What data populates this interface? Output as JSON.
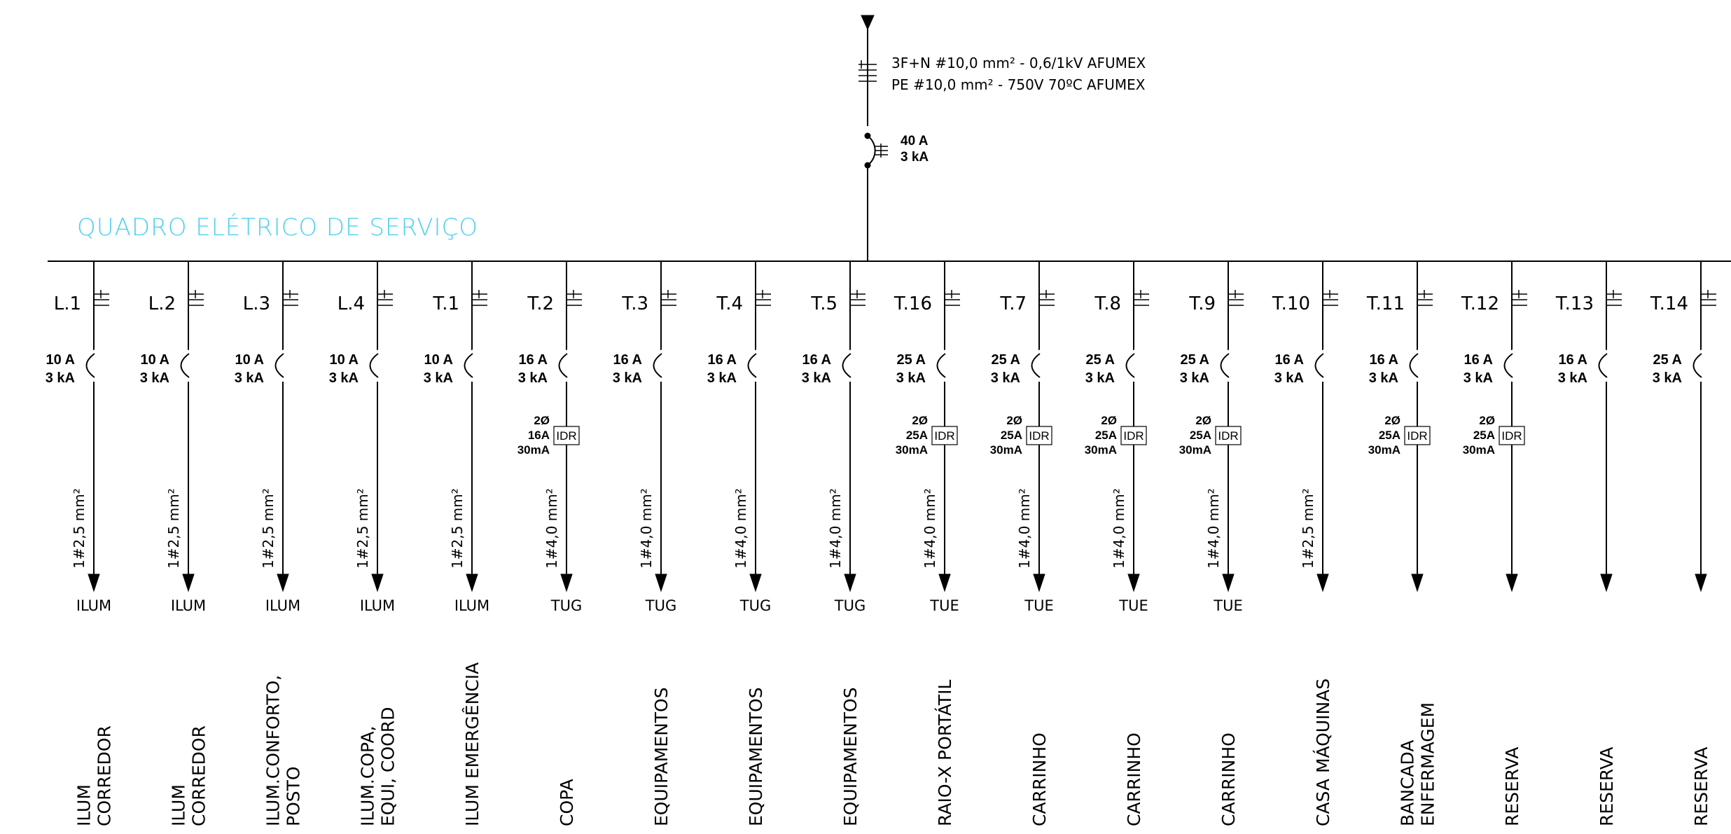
{
  "title": "QUADRO ELÉTRICO DE SERVIÇO",
  "colors": {
    "title": "#4fd0ec",
    "lines": "#000000",
    "background": "#ffffff"
  },
  "feeder": {
    "cable_line1": "3F+N #10,0 mm² - 0,6/1kV AFUMEX",
    "cable_line2": "PE #10,0 mm² - 750V 70ºC AFUMEX",
    "breaker_current": "40 A",
    "breaker_capacity": "3 kA"
  },
  "circuits": [
    {
      "id": "L.1",
      "current": "10 A",
      "capacity": "3 kA",
      "idr": null,
      "cable": "1#2,5 mm²",
      "type": "ILUM",
      "description": [
        "ILUM",
        "CORREDOR"
      ]
    },
    {
      "id": "L.2",
      "current": "10 A",
      "capacity": "3 kA",
      "idr": null,
      "cable": "1#2,5 mm²",
      "type": "ILUM",
      "description": [
        "ILUM",
        "CORREDOR"
      ]
    },
    {
      "id": "L.3",
      "current": "10 A",
      "capacity": "3 kA",
      "idr": null,
      "cable": "1#2,5 mm²",
      "type": "ILUM",
      "description": [
        "ILUM.CONFORTO,",
        "POSTO"
      ]
    },
    {
      "id": "L.4",
      "current": "10 A",
      "capacity": "3 kA",
      "idr": null,
      "cable": "1#2,5 mm²",
      "type": "ILUM",
      "description": [
        "ILUM.COPA,",
        "EQUI, COORD"
      ]
    },
    {
      "id": "T.1",
      "current": "10 A",
      "capacity": "3 kA",
      "idr": null,
      "cable": "1#2,5 mm²",
      "type": "ILUM",
      "description": [
        "ILUM EMERGÊNCIA"
      ]
    },
    {
      "id": "T.2",
      "current": "16 A",
      "capacity": "3 kA",
      "idr": {
        "poles": "2Ø",
        "current": "16A",
        "sensitivity": "30mA",
        "label": "IDR"
      },
      "cable": "1#4,0 mm²",
      "type": "TUG",
      "description": [
        "COPA"
      ]
    },
    {
      "id": "T.3",
      "current": "16 A",
      "capacity": "3 kA",
      "idr": null,
      "cable": "1#4,0 mm²",
      "type": "TUG",
      "description": [
        "EQUIPAMENTOS"
      ]
    },
    {
      "id": "T.4",
      "current": "16 A",
      "capacity": "3 kA",
      "idr": null,
      "cable": "1#4,0 mm²",
      "type": "TUG",
      "description": [
        "EQUIPAMENTOS"
      ]
    },
    {
      "id": "T.5",
      "current": "16 A",
      "capacity": "3 kA",
      "idr": null,
      "cable": "1#4,0 mm²",
      "type": "TUG",
      "description": [
        "EQUIPAMENTOS"
      ]
    },
    {
      "id": "T.16",
      "current": "25 A",
      "capacity": "3 kA",
      "idr": {
        "poles": "2Ø",
        "current": "25A",
        "sensitivity": "30mA",
        "label": "IDR"
      },
      "cable": "1#4,0 mm²",
      "type": "TUE",
      "description": [
        "RAIO-X PORTÁTIL"
      ]
    },
    {
      "id": "T.7",
      "current": "25 A",
      "capacity": "3 kA",
      "idr": {
        "poles": "2Ø",
        "current": "25A",
        "sensitivity": "30mA",
        "label": "IDR"
      },
      "cable": "1#4,0 mm²",
      "type": "TUE",
      "description": [
        "CARRINHO"
      ]
    },
    {
      "id": "T.8",
      "current": "25 A",
      "capacity": "3 kA",
      "idr": {
        "poles": "2Ø",
        "current": "25A",
        "sensitivity": "30mA",
        "label": "IDR"
      },
      "cable": "1#4,0 mm²",
      "type": "TUE",
      "description": [
        "CARRINHO"
      ]
    },
    {
      "id": "T.9",
      "current": "25 A",
      "capacity": "3 kA",
      "idr": {
        "poles": "2Ø",
        "current": "25A",
        "sensitivity": "30mA",
        "label": "IDR"
      },
      "cable": "1#4,0 mm²",
      "type": "TUE",
      "description": [
        "CARRINHO"
      ]
    },
    {
      "id": "T.10",
      "current": "16 A",
      "capacity": "3 kA",
      "idr": null,
      "cable": "1#2,5 mm²",
      "type": "",
      "description": [
        "CASA MÁQUINAS"
      ]
    },
    {
      "id": "T.11",
      "current": "16 A",
      "capacity": "3 kA",
      "idr": {
        "poles": "2Ø",
        "current": "25A",
        "sensitivity": "30mA",
        "label": "IDR"
      },
      "cable": "",
      "type": "",
      "description": [
        "BANCADA",
        "ENFERMAGEM"
      ]
    },
    {
      "id": "T.12",
      "current": "16 A",
      "capacity": "3 kA",
      "idr": {
        "poles": "2Ø",
        "current": "25A",
        "sensitivity": "30mA",
        "label": "IDR"
      },
      "cable": "",
      "type": "",
      "description": [
        "RESERVA"
      ]
    },
    {
      "id": "T.13",
      "current": "16 A",
      "capacity": "3 kA",
      "idr": null,
      "cable": "",
      "type": "",
      "description": [
        "RESERVA"
      ]
    },
    {
      "id": "T.14",
      "current": "25 A",
      "capacity": "3 kA",
      "idr": null,
      "cable": "",
      "type": "",
      "description": [
        "RESERVA"
      ]
    }
  ]
}
